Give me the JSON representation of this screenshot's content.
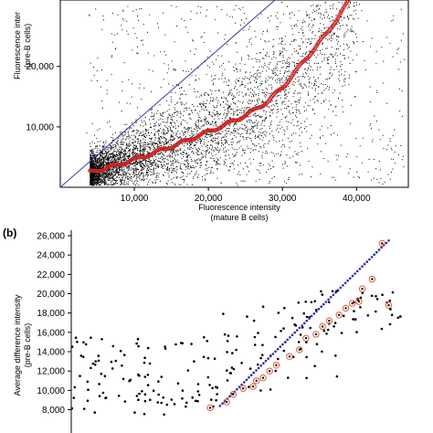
{
  "panel_a": {
    "xlabel_line1": "Fluorescence intensity",
    "xlabel_line2": "(mature B cells)",
    "ylabel_line1": "Fluorescence inter",
    "ylabel_line2": "(pre-B cells)"
  },
  "panel_b": {
    "label": "(b)",
    "ylabel_line1": "Average difference intensity",
    "ylabel_line2": "(pre-B cells)"
  },
  "colors": {
    "points": "#000000",
    "fit_line": "#3b3bb3",
    "trend": "#cc2222",
    "diagonal_dots": "#2a2aa8",
    "circle": "#e05a3a"
  },
  "chart_data": [
    {
      "type": "scatter",
      "title": "",
      "xlabel": "Fluorescence intensity (mature B cells)",
      "ylabel": "Fluorescence intensity (pre-B cells)",
      "xlim": [
        0,
        47000
      ],
      "ylim": [
        0,
        31000
      ],
      "xticks": [
        10000,
        20000,
        30000,
        40000
      ],
      "xtick_labels": [
        "10,000",
        "20,000",
        "30,000",
        "40,000"
      ],
      "yticks": [
        10000,
        20000
      ],
      "ytick_labels": [
        "10,000",
        "20,000"
      ],
      "series": [
        {
          "type": "smoothed-trend",
          "x": [
            4000,
            6000,
            8000,
            10000,
            12000,
            14000,
            16000,
            18000,
            20000,
            22000,
            24000,
            26000,
            28000,
            30000,
            32000,
            34000,
            36000,
            38000,
            39000
          ],
          "y": [
            2500,
            3100,
            3800,
            4600,
            5400,
            6300,
            7200,
            8200,
            9200,
            10200,
            11300,
            12600,
            14200,
            16500,
            19500,
            22500,
            25500,
            29000,
            31000
          ]
        },
        {
          "type": "reference-line",
          "x": [
            0,
            29000
          ],
          "y": [
            0,
            31000
          ]
        }
      ]
    },
    {
      "type": "scatter",
      "title": "",
      "ylabel": "Average difference intensity (pre-B cells)",
      "ylim": [
        7000,
        26000
      ],
      "yticks": [
        8000,
        10000,
        12000,
        14000,
        16000,
        18000,
        20000,
        22000,
        24000,
        26000
      ],
      "ytick_labels": [
        "8,000",
        "10,000",
        "12,000",
        "14,000",
        "16,000",
        "18,000",
        "20,000",
        "22,000",
        "24,000",
        "26,000"
      ],
      "series": [
        {
          "type": "circled-points",
          "x": [
            0.42,
            0.47,
            0.49,
            0.52,
            0.55,
            0.56,
            0.58,
            0.6,
            0.62,
            0.66,
            0.69,
            0.71,
            0.74,
            0.76,
            0.78,
            0.81,
            0.83,
            0.85,
            0.87,
            0.88,
            0.91,
            0.94,
            0.96
          ],
          "y": [
            8200,
            8800,
            9600,
            10200,
            10400,
            11000,
            11300,
            12000,
            12600,
            13500,
            14200,
            15400,
            15800,
            16600,
            17200,
            17800,
            18500,
            19000,
            19200,
            20500,
            21500,
            25200,
            18800
          ]
        },
        {
          "type": "diagonal-dots",
          "x": [
            0.45,
            0.96
          ],
          "y": [
            8400,
            25500
          ]
        }
      ]
    }
  ]
}
